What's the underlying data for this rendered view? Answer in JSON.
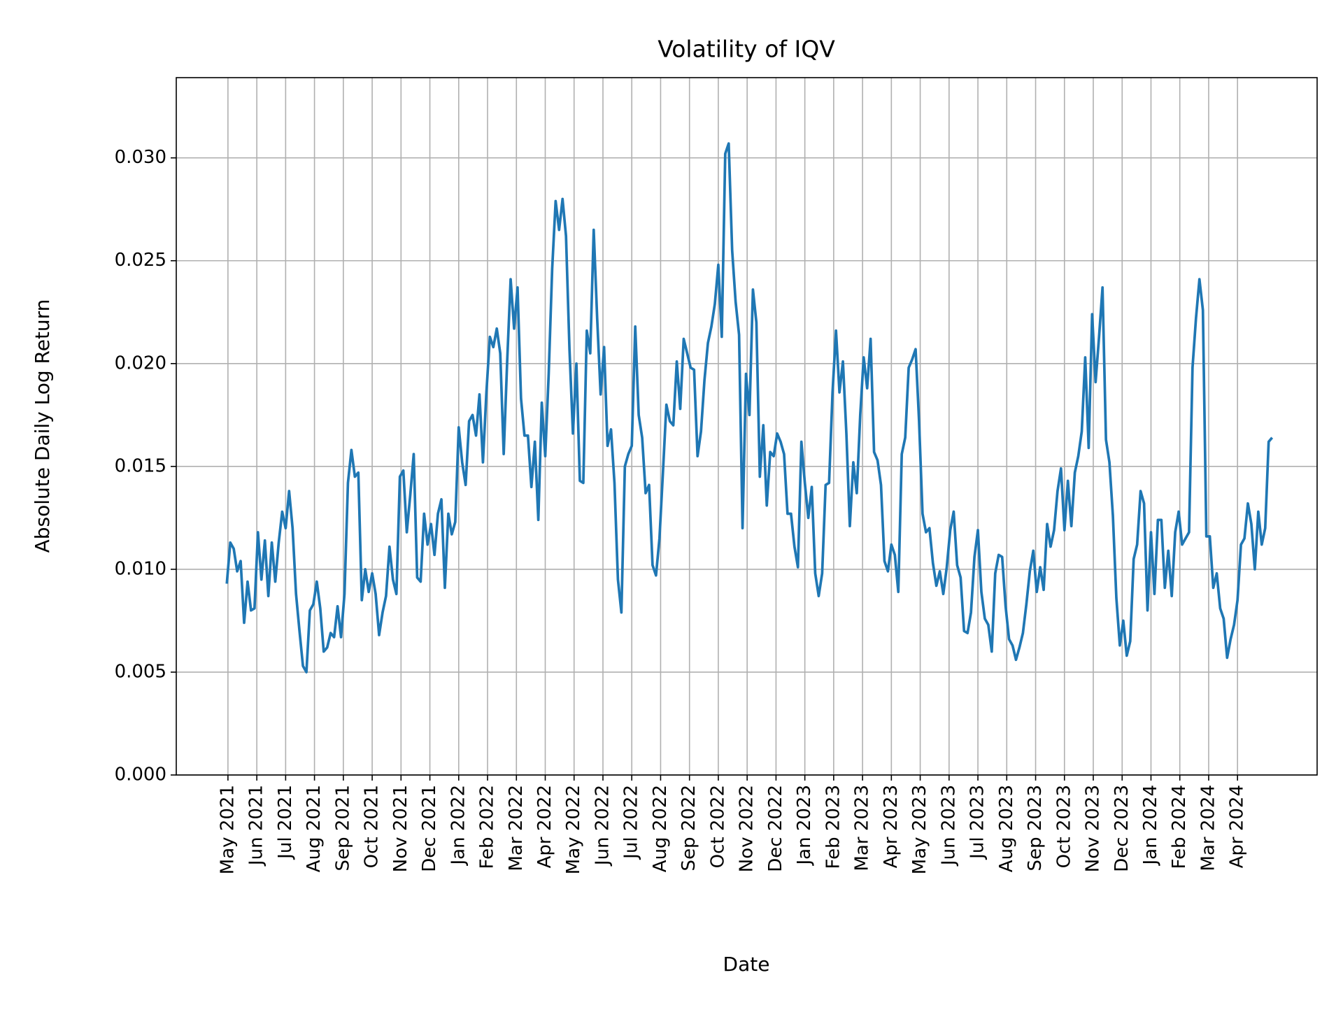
{
  "chart_data": {
    "type": "line",
    "title": "Volatility of IQV",
    "xlabel": "Date",
    "ylabel": "Absolute Daily Log Return",
    "color": "#1f77b4",
    "grid": true,
    "xlim": [
      2021.184,
      2024.48
    ],
    "ylim": [
      0,
      0.0339
    ],
    "yticks": [
      {
        "value": 0,
        "label": "0.000"
      },
      {
        "value": 0.005,
        "label": "0.005"
      },
      {
        "value": 0.01,
        "label": "0.010"
      },
      {
        "value": 0.015,
        "label": "0.015"
      },
      {
        "value": 0.02,
        "label": "0.020"
      },
      {
        "value": 0.025,
        "label": "0.025"
      },
      {
        "value": 0.03,
        "label": "0.030"
      }
    ],
    "xticks": [
      {
        "value": 2021.3333,
        "label": "May 2021"
      },
      {
        "value": 2021.4167,
        "label": "Jun 2021"
      },
      {
        "value": 2021.5,
        "label": "Jul 2021"
      },
      {
        "value": 2021.5833,
        "label": "Aug 2021"
      },
      {
        "value": 2021.6667,
        "label": "Sep 2021"
      },
      {
        "value": 2021.75,
        "label": "Oct 2021"
      },
      {
        "value": 2021.8333,
        "label": "Nov 2021"
      },
      {
        "value": 2021.9167,
        "label": "Dec 2021"
      },
      {
        "value": 2022.0,
        "label": "Jan 2022"
      },
      {
        "value": 2022.0833,
        "label": "Feb 2022"
      },
      {
        "value": 2022.1667,
        "label": "Mar 2022"
      },
      {
        "value": 2022.25,
        "label": "Apr 2022"
      },
      {
        "value": 2022.3333,
        "label": "May 2022"
      },
      {
        "value": 2022.4167,
        "label": "Jun 2022"
      },
      {
        "value": 2022.5,
        "label": "Jul 2022"
      },
      {
        "value": 2022.5833,
        "label": "Aug 2022"
      },
      {
        "value": 2022.6667,
        "label": "Sep 2022"
      },
      {
        "value": 2022.75,
        "label": "Oct 2022"
      },
      {
        "value": 2022.8333,
        "label": "Nov 2022"
      },
      {
        "value": 2022.9167,
        "label": "Dec 2022"
      },
      {
        "value": 2023.0,
        "label": "Jan 2023"
      },
      {
        "value": 2023.0833,
        "label": "Feb 2023"
      },
      {
        "value": 2023.1667,
        "label": "Mar 2023"
      },
      {
        "value": 2023.25,
        "label": "Apr 2023"
      },
      {
        "value": 2023.3333,
        "label": "May 2023"
      },
      {
        "value": 2023.4167,
        "label": "Jun 2023"
      },
      {
        "value": 2023.5,
        "label": "Jul 2023"
      },
      {
        "value": 2023.5833,
        "label": "Aug 2023"
      },
      {
        "value": 2023.6667,
        "label": "Sep 2023"
      },
      {
        "value": 2023.75,
        "label": "Oct 2023"
      },
      {
        "value": 2023.8333,
        "label": "Nov 2023"
      },
      {
        "value": 2023.9167,
        "label": "Dec 2023"
      },
      {
        "value": 2024.0,
        "label": "Jan 2024"
      },
      {
        "value": 2024.0833,
        "label": "Feb 2024"
      },
      {
        "value": 2024.1667,
        "label": "Mar 2024"
      },
      {
        "value": 2024.25,
        "label": "Apr 2024"
      }
    ],
    "x": [
      2021.33,
      2021.34,
      2021.35,
      2021.36,
      2021.37,
      2021.38,
      2021.39,
      2021.4,
      2021.41,
      2021.42,
      2021.43,
      2021.44,
      2021.45,
      2021.46,
      2021.47,
      2021.48,
      2021.49,
      2021.5,
      2021.51,
      2021.52,
      2021.53,
      2021.54,
      2021.55,
      2021.56,
      2021.57,
      2021.58,
      2021.59,
      2021.6,
      2021.61,
      2021.62,
      2021.63,
      2021.64,
      2021.65,
      2021.66,
      2021.67,
      2021.68,
      2021.69,
      2021.7,
      2021.71,
      2021.72,
      2021.73,
      2021.74,
      2021.75,
      2021.76,
      2021.77,
      2021.78,
      2021.79,
      2021.8,
      2021.81,
      2021.82,
      2021.83,
      2021.84,
      2021.85,
      2021.86,
      2021.87,
      2021.88,
      2021.89,
      2021.9,
      2021.91,
      2021.92,
      2021.93,
      2021.94,
      2021.95,
      2021.96,
      2021.97,
      2021.98,
      2021.99,
      2022.0,
      2022.01,
      2022.02,
      2022.03,
      2022.04,
      2022.05,
      2022.06,
      2022.07,
      2022.08,
      2022.09,
      2022.1,
      2022.11,
      2022.12,
      2022.13,
      2022.14,
      2022.15,
      2022.16,
      2022.17,
      2022.18,
      2022.19,
      2022.2,
      2022.21,
      2022.22,
      2022.23,
      2022.24,
      2022.25,
      2022.26,
      2022.27,
      2022.28,
      2022.29,
      2022.3,
      2022.31,
      2022.32,
      2022.33,
      2022.34,
      2022.35,
      2022.36,
      2022.37,
      2022.38,
      2022.39,
      2022.4,
      2022.41,
      2022.42,
      2022.43,
      2022.44,
      2022.45,
      2022.46,
      2022.47,
      2022.48,
      2022.49,
      2022.5,
      2022.51,
      2022.52,
      2022.53,
      2022.54,
      2022.55,
      2022.56,
      2022.57,
      2022.58,
      2022.59,
      2022.6,
      2022.61,
      2022.62,
      2022.63,
      2022.64,
      2022.65,
      2022.66,
      2022.67,
      2022.68,
      2022.69,
      2022.7,
      2022.71,
      2022.72,
      2022.73,
      2022.74,
      2022.75,
      2022.76,
      2022.77,
      2022.78,
      2022.79,
      2022.8,
      2022.81,
      2022.82,
      2022.83,
      2022.84,
      2022.85,
      2022.86,
      2022.87,
      2022.88,
      2022.89,
      2022.9,
      2022.91,
      2022.92,
      2022.93,
      2022.94,
      2022.95,
      2022.96,
      2022.97,
      2022.98,
      2022.99,
      2023.0,
      2023.01,
      2023.02,
      2023.03,
      2023.04,
      2023.05,
      2023.06,
      2023.07,
      2023.08,
      2023.09,
      2023.1,
      2023.11,
      2023.12,
      2023.13,
      2023.14,
      2023.15,
      2023.16,
      2023.17,
      2023.18,
      2023.19,
      2023.2,
      2023.21,
      2023.22,
      2023.23,
      2023.24,
      2023.25,
      2023.26,
      2023.27,
      2023.28,
      2023.29,
      2023.3,
      2023.31,
      2023.32,
      2023.33,
      2023.34,
      2023.35,
      2023.36,
      2023.37,
      2023.38,
      2023.39,
      2023.4,
      2023.41,
      2023.42,
      2023.43,
      2023.44,
      2023.45,
      2023.46,
      2023.47,
      2023.48,
      2023.49,
      2023.5,
      2023.51,
      2023.52,
      2023.53,
      2023.54,
      2023.55,
      2023.56,
      2023.57,
      2023.58,
      2023.59,
      2023.6,
      2023.61,
      2023.62,
      2023.63,
      2023.64,
      2023.65,
      2023.66,
      2023.67,
      2023.68,
      2023.69,
      2023.7,
      2023.71,
      2023.72,
      2023.73,
      2023.74,
      2023.75,
      2023.76,
      2023.77,
      2023.78,
      2023.79,
      2023.8,
      2023.81,
      2023.82,
      2023.83,
      2023.84,
      2023.85,
      2023.86,
      2023.87,
      2023.88,
      2023.89,
      2023.9,
      2023.91,
      2023.92,
      2023.93,
      2023.94,
      2023.95,
      2023.96,
      2023.97,
      2023.98,
      2023.99,
      2024.0,
      2024.01,
      2024.02,
      2024.03,
      2024.04,
      2024.05,
      2024.06,
      2024.07,
      2024.08,
      2024.09,
      2024.1,
      2024.11,
      2024.12,
      2024.13,
      2024.14,
      2024.15,
      2024.16,
      2024.17,
      2024.18,
      2024.19,
      2024.2,
      2024.21,
      2024.22,
      2024.23,
      2024.24,
      2024.25,
      2024.26,
      2024.27,
      2024.28,
      2024.29,
      2024.3,
      2024.31,
      2024.32,
      2024.33,
      2024.34,
      2024.35
    ],
    "values": [
      0.0093,
      0.0113,
      0.011,
      0.0099,
      0.0104,
      0.0074,
      0.0094,
      0.008,
      0.0081,
      0.0118,
      0.0095,
      0.0114,
      0.0087,
      0.0113,
      0.0094,
      0.0113,
      0.0128,
      0.012,
      0.0138,
      0.012,
      0.0088,
      0.007,
      0.0053,
      0.005,
      0.008,
      0.0083,
      0.0094,
      0.0081,
      0.006,
      0.0062,
      0.0069,
      0.0067,
      0.0082,
      0.0067,
      0.0088,
      0.0142,
      0.0158,
      0.0145,
      0.0147,
      0.0085,
      0.01,
      0.0089,
      0.0098,
      0.0088,
      0.0068,
      0.0079,
      0.0087,
      0.0111,
      0.0095,
      0.0088,
      0.0145,
      0.0148,
      0.0118,
      0.0136,
      0.0156,
      0.0096,
      0.0094,
      0.0127,
      0.0112,
      0.0122,
      0.0107,
      0.0127,
      0.0134,
      0.0091,
      0.0127,
      0.0117,
      0.0123,
      0.0169,
      0.0152,
      0.0141,
      0.0172,
      0.0175,
      0.0165,
      0.0185,
      0.0152,
      0.0186,
      0.0213,
      0.0208,
      0.0217,
      0.0205,
      0.0156,
      0.0201,
      0.0241,
      0.0217,
      0.0237,
      0.0183,
      0.0165,
      0.0165,
      0.014,
      0.0162,
      0.0124,
      0.0181,
      0.0155,
      0.0195,
      0.0246,
      0.0279,
      0.0265,
      0.028,
      0.0262,
      0.0207,
      0.0166,
      0.02,
      0.0143,
      0.0142,
      0.0216,
      0.0205,
      0.0265,
      0.0222,
      0.0185,
      0.0208,
      0.016,
      0.0168,
      0.0142,
      0.0095,
      0.0079,
      0.015,
      0.0156,
      0.016,
      0.0218,
      0.0175,
      0.0164,
      0.0137,
      0.0141,
      0.0102,
      0.0097,
      0.0115,
      0.0147,
      0.018,
      0.0172,
      0.017,
      0.0201,
      0.0178,
      0.0212,
      0.0205,
      0.0198,
      0.0197,
      0.0155,
      0.0167,
      0.0192,
      0.021,
      0.0218,
      0.0229,
      0.0248,
      0.0213,
      0.0302,
      0.0307,
      0.0255,
      0.023,
      0.0214,
      0.012,
      0.0195,
      0.0175,
      0.0236,
      0.022,
      0.0145,
      0.017,
      0.0131,
      0.0157,
      0.0155,
      0.0166,
      0.0162,
      0.0156,
      0.0127,
      0.0127,
      0.0111,
      0.0101,
      0.0162,
      0.0142,
      0.0125,
      0.014,
      0.0098,
      0.0087,
      0.0098,
      0.0141,
      0.0142,
      0.0186,
      0.0216,
      0.0186,
      0.0201,
      0.0166,
      0.0121,
      0.0152,
      0.0137,
      0.0175,
      0.0203,
      0.0188,
      0.0212,
      0.0157,
      0.0153,
      0.0141,
      0.0104,
      0.0099,
      0.0112,
      0.0107,
      0.0089,
      0.0156,
      0.0164,
      0.0198,
      0.0202,
      0.0207,
      0.0172,
      0.0127,
      0.0118,
      0.012,
      0.0103,
      0.0092,
      0.0099,
      0.0088,
      0.0101,
      0.0119,
      0.0128,
      0.0102,
      0.0096,
      0.007,
      0.0069,
      0.0079,
      0.0106,
      0.0119,
      0.0089,
      0.0076,
      0.0073,
      0.006,
      0.0098,
      0.0107,
      0.0106,
      0.0082,
      0.0066,
      0.0063,
      0.0056,
      0.0062,
      0.0069,
      0.0083,
      0.0099,
      0.0109,
      0.0089,
      0.0101,
      0.009,
      0.0122,
      0.0111,
      0.0119,
      0.0138,
      0.0149,
      0.0119,
      0.0143,
      0.0121,
      0.0147,
      0.0155,
      0.0167,
      0.0203,
      0.0159,
      0.0224,
      0.0191,
      0.0213,
      0.0237,
      0.0163,
      0.0152,
      0.0126,
      0.0086,
      0.0063,
      0.0075,
      0.0058,
      0.0065,
      0.0105,
      0.0112,
      0.0138,
      0.0132,
      0.008,
      0.0118,
      0.0088,
      0.0124,
      0.0124,
      0.0091,
      0.0109,
      0.0087,
      0.0118,
      0.0128,
      0.0112,
      0.0115,
      0.0118,
      0.0198,
      0.0222,
      0.0241,
      0.0226,
      0.0116,
      0.0116,
      0.0091,
      0.0098,
      0.0081,
      0.0076,
      0.0057,
      0.0066,
      0.0073,
      0.0085,
      0.0112,
      0.0115,
      0.0132,
      0.0122,
      0.01,
      0.0128,
      0.0112,
      0.012,
      0.0162,
      0.0164
    ]
  }
}
